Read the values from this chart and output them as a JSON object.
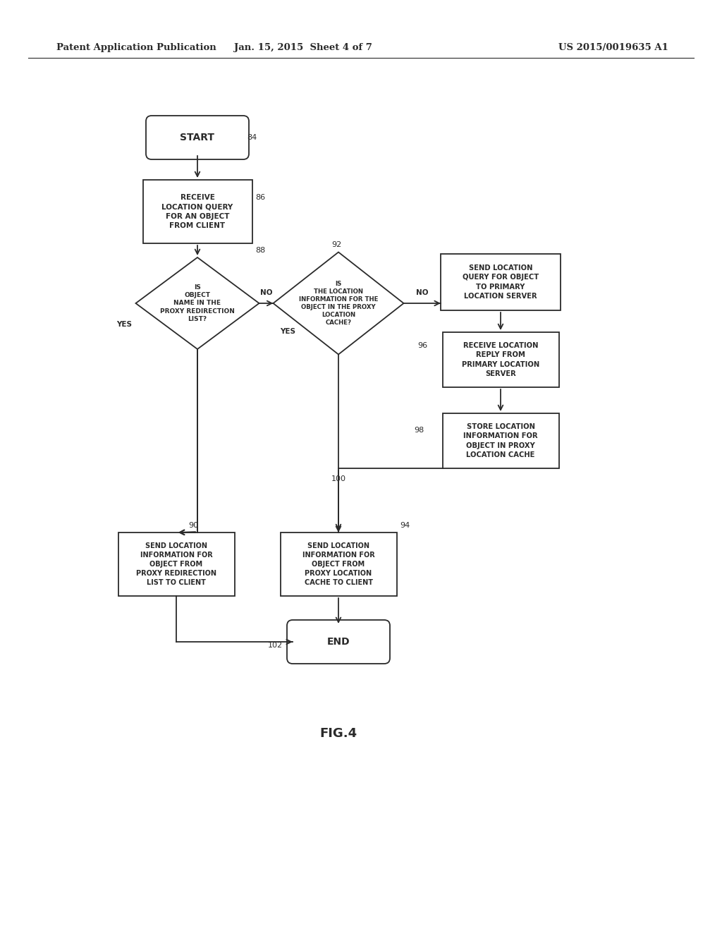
{
  "bg_color": "#ffffff",
  "header_left": "Patent Application Publication",
  "header_mid": "Jan. 15, 2015  Sheet 4 of 7",
  "header_right": "US 2015/0019635 A1",
  "fig_label": "FIG.4",
  "line_color": "#2a2a2a",
  "text_color": "#2a2a2a",
  "box_fill": "#ffffff",
  "box_edge": "#2a2a2a",
  "ref84": "84",
  "ref86": "86",
  "ref88": "88",
  "ref92": "92",
  "ref96": "96",
  "ref98": "98",
  "ref100": "100",
  "ref90": "90",
  "ref94": "94",
  "ref102": "102",
  "label_start": "START",
  "label_end": "END",
  "label_box86": "RECEIVE\nLOCATION QUERY\nFOR AN OBJECT\nFROM CLIENT",
  "label_d88": "IS\nOBJECT\nNAME IN THE\nPROXY REDIRECTION\nLIST?",
  "label_d92": "IS\nTHE LOCATION\nINFORMATION FOR THE\nOBJECT IN THE PROXY\nLOCATION\nCACHE?",
  "label_boxSQ": "SEND LOCATION\nQUERY FOR OBJECT\nTO PRIMARY\nLOCATION SERVER",
  "label_box96": "RECEIVE LOCATION\nREPLY FROM\nPRIMARY LOCATION\nSERVER",
  "label_box100": "STORE LOCATION\nINFORMATION FOR\nOBJECT IN PROXY\nLOCATION CACHE",
  "label_box90": "SEND LOCATION\nINFORMATION FOR\nOBJECT FROM\nPROXY REDIRECTION\nLIST TO CLIENT",
  "label_box94": "SEND LOCATION\nINFORMATION FOR\nOBJECT FROM\nPROXY LOCATION\nCACHE TO CLIENT"
}
